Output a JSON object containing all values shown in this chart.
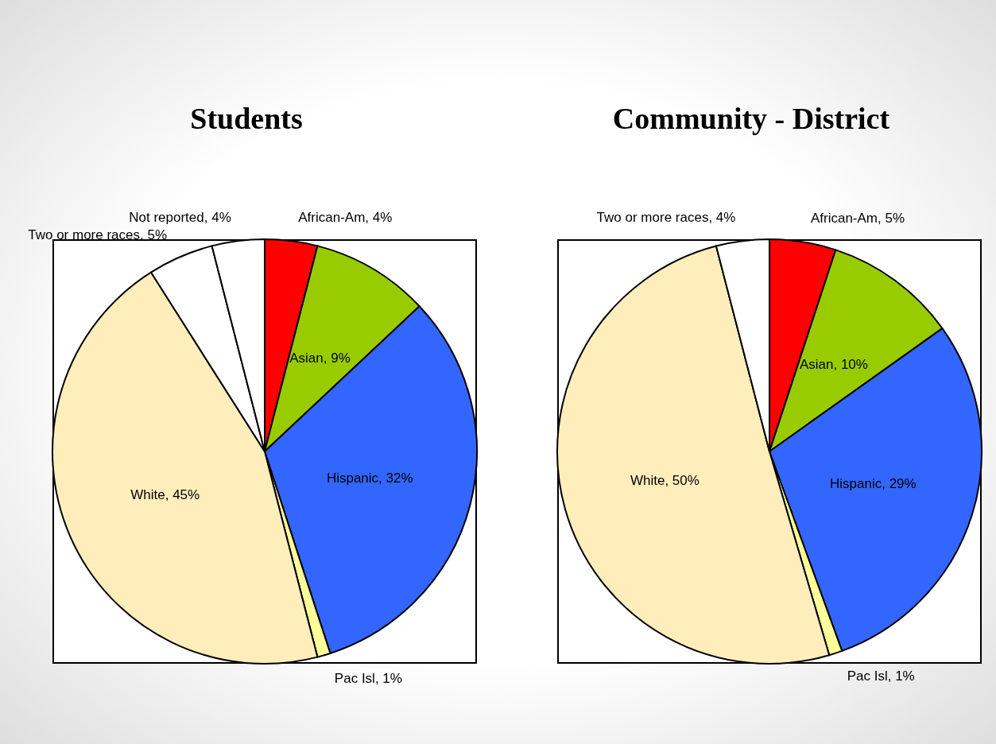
{
  "chart_data": [
    {
      "type": "pie",
      "title": "Students",
      "categories": [
        "African-Am",
        "Asian",
        "Hispanic",
        "Pac Isl",
        "White",
        "Two or more races",
        "Not reported"
      ],
      "values": [
        4,
        9,
        32,
        1,
        45,
        5,
        4
      ],
      "value_labels": [
        "4%",
        "9%",
        "32%",
        "1%",
        "45%",
        "5%",
        "4%"
      ],
      "colors": [
        "#ff0000",
        "#99cc00",
        "#3366ff",
        "#ffff99",
        "#ffeebb",
        "#ffffff",
        "#ffffff"
      ],
      "legend": false
    },
    {
      "type": "pie",
      "title": "Community - District",
      "categories": [
        "African-Am",
        "Asian",
        "Hispanic",
        "Pac Isl",
        "White",
        "Two or more races"
      ],
      "values": [
        5,
        10,
        29,
        1,
        50,
        4
      ],
      "value_labels": [
        "5%",
        "10%",
        "29%",
        "1%",
        "50%",
        "4%"
      ],
      "colors": [
        "#ff0000",
        "#99cc00",
        "#3366ff",
        "#ffff99",
        "#ffeebb",
        "#ffffff"
      ],
      "legend": false
    }
  ]
}
